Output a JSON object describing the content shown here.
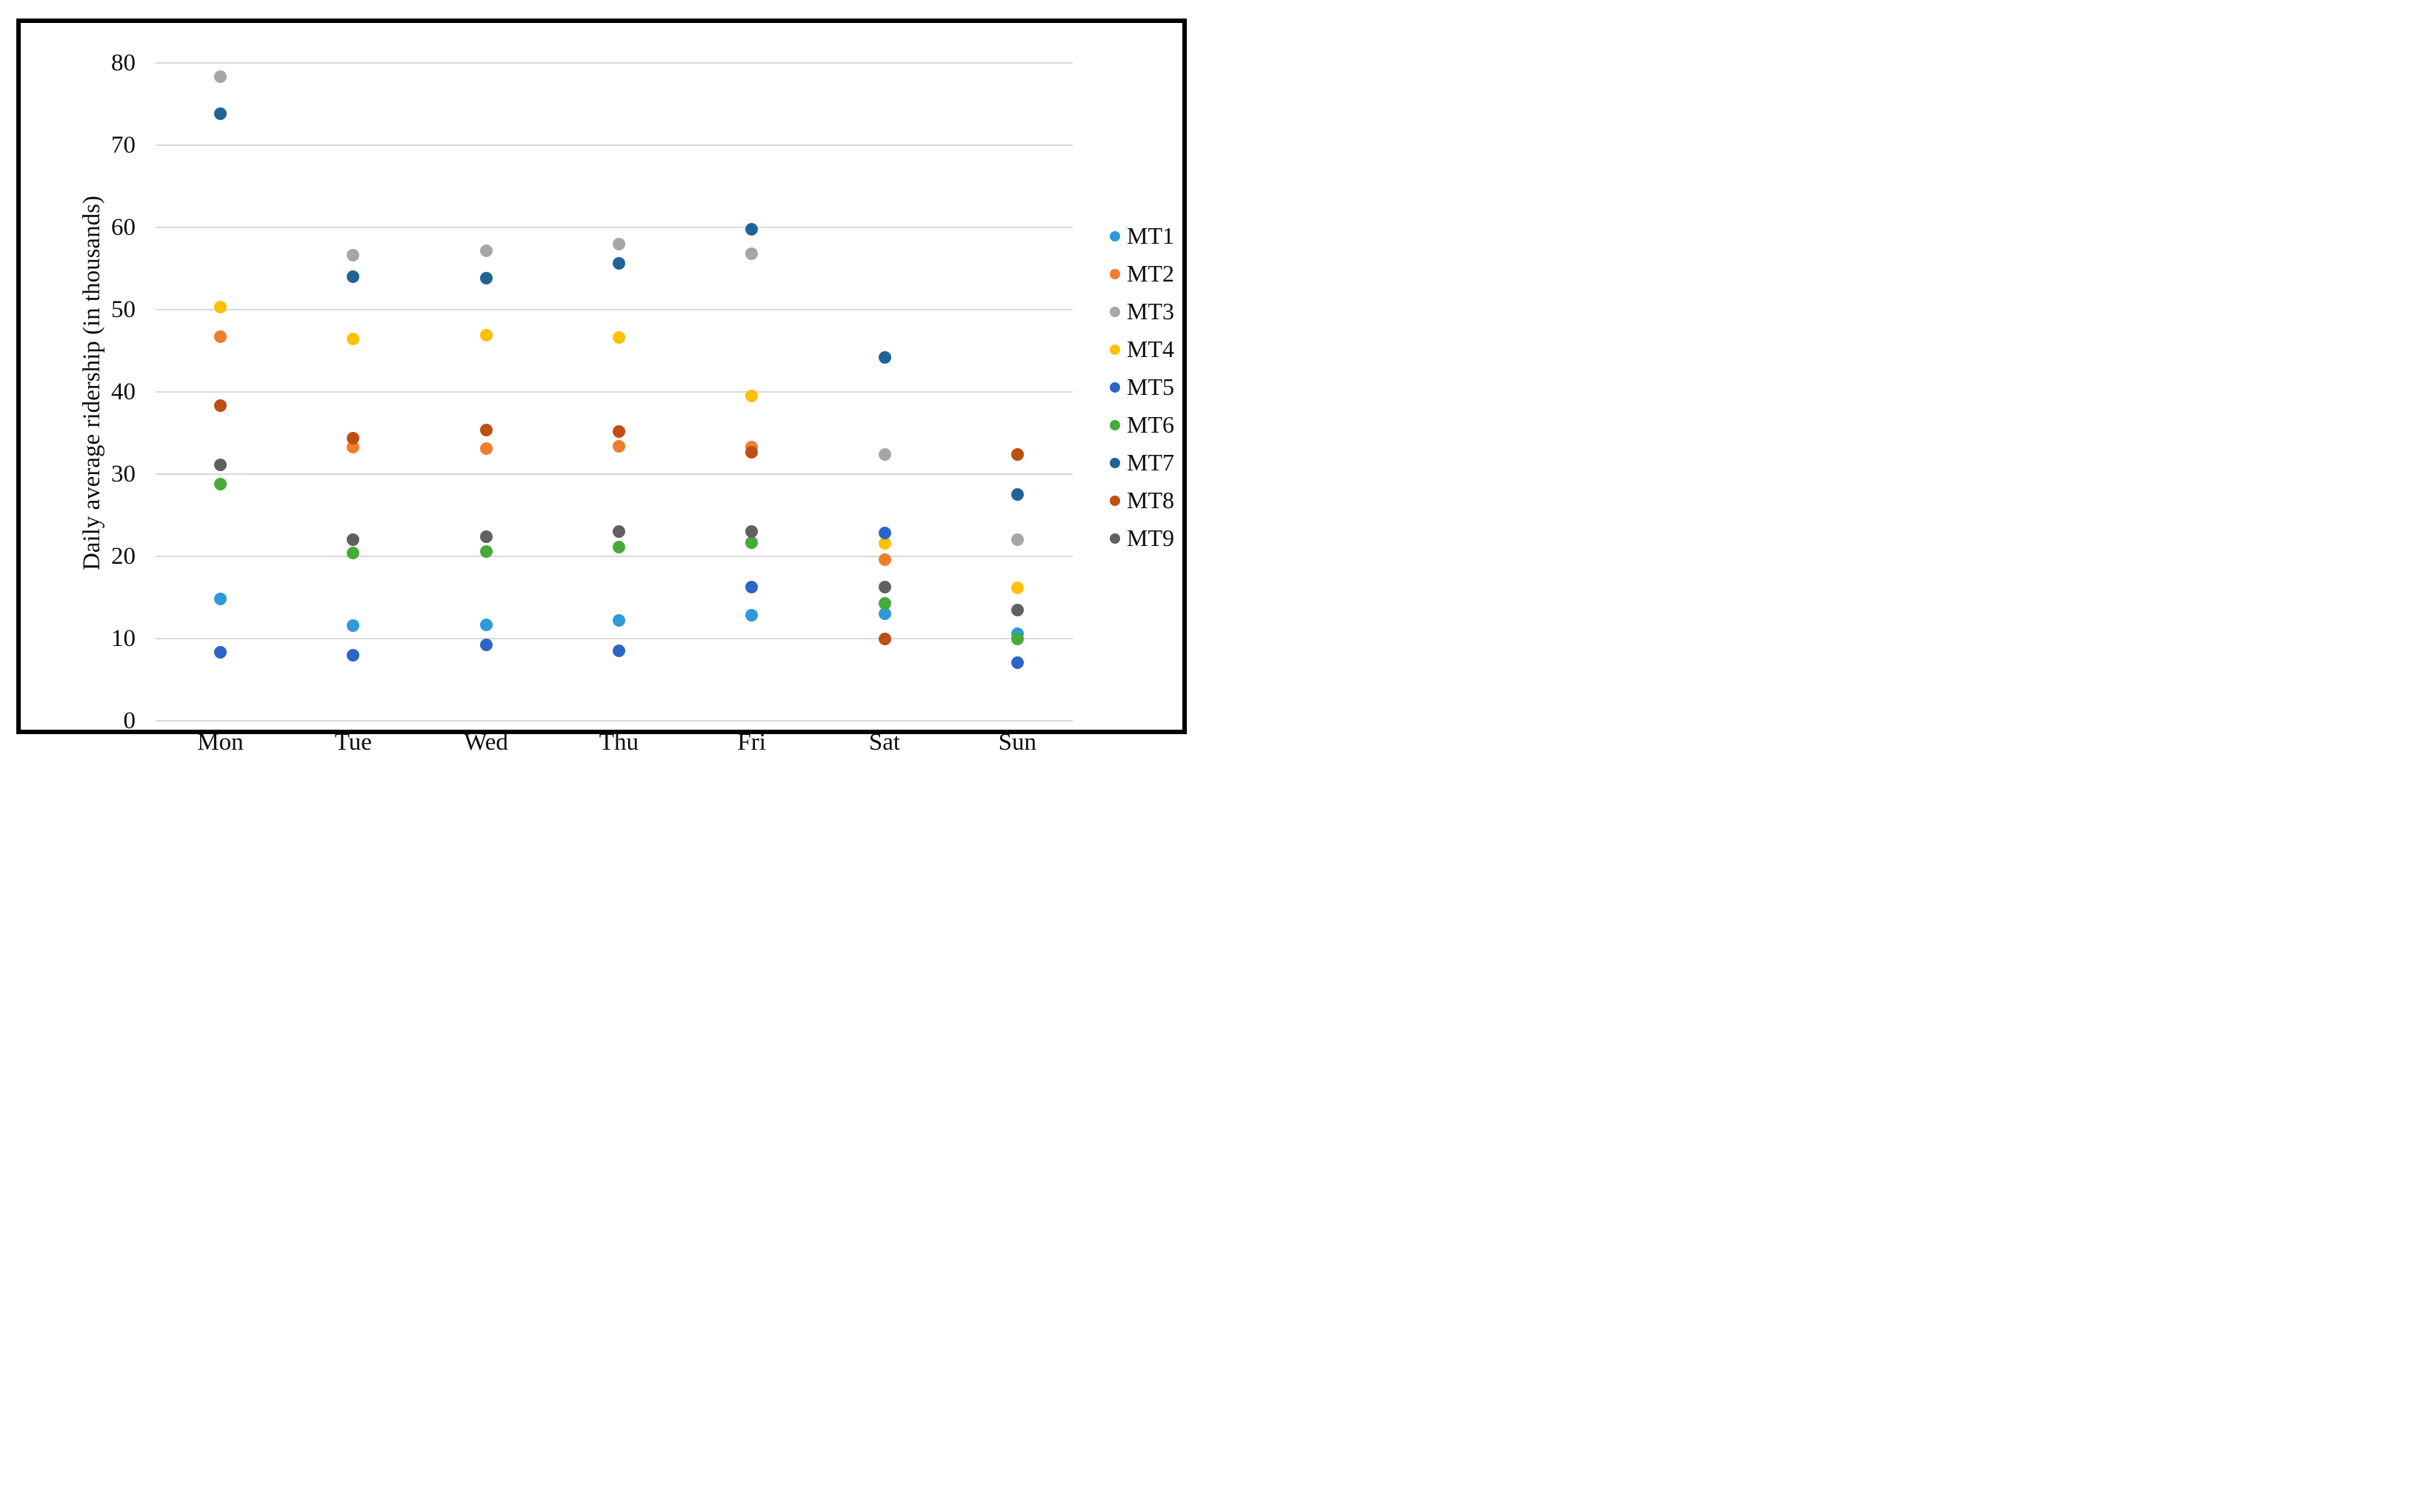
{
  "chart_data": {
    "type": "scatter",
    "title": "",
    "xlabel": "",
    "ylabel": "Daily average ridership (in thousands)",
    "categories": [
      "Mon",
      "Tue",
      "Wed",
      "Thu",
      "Fri",
      "Sat",
      "Sun"
    ],
    "ylim": [
      0,
      80
    ],
    "yticks": [
      0,
      10,
      20,
      30,
      40,
      50,
      60,
      70,
      80
    ],
    "grid": true,
    "legend_position": "right",
    "gridline_color": "#d9d9d9",
    "frame_color": "#000000",
    "series": [
      {
        "name": "MT1",
        "color": "#2E9BD8",
        "values": [
          14.8,
          11.6,
          11.7,
          12.2,
          12.8,
          13.0,
          10.6
        ]
      },
      {
        "name": "MT2",
        "color": "#EF7D2C",
        "values": [
          46.7,
          33.3,
          33.1,
          33.4,
          33.3,
          19.6,
          32.4
        ]
      },
      {
        "name": "MT3",
        "color": "#A6A6A6",
        "values": [
          78.3,
          56.6,
          57.2,
          58.0,
          56.8,
          32.4,
          22.0
        ]
      },
      {
        "name": "MT4",
        "color": "#FFC000",
        "values": [
          50.3,
          46.4,
          46.9,
          46.6,
          39.5,
          21.6,
          16.2
        ]
      },
      {
        "name": "MT5",
        "color": "#2D65C6",
        "values": [
          8.3,
          8.0,
          9.2,
          8.5,
          16.3,
          22.8,
          7.1
        ]
      },
      {
        "name": "MT6",
        "color": "#45AB38",
        "values": [
          28.8,
          20.4,
          20.6,
          21.1,
          21.7,
          14.3,
          10.0
        ]
      },
      {
        "name": "MT7",
        "color": "#1F6497",
        "values": [
          73.8,
          54.0,
          53.8,
          55.6,
          59.8,
          44.2,
          27.5
        ]
      },
      {
        "name": "MT8",
        "color": "#BF4E14",
        "values": [
          38.3,
          34.4,
          35.4,
          35.2,
          32.7,
          10.0,
          32.4
        ]
      },
      {
        "name": "MT9",
        "color": "#606060",
        "values": [
          31.1,
          22.0,
          22.4,
          23.0,
          23.0,
          16.3,
          13.5
        ]
      }
    ]
  }
}
